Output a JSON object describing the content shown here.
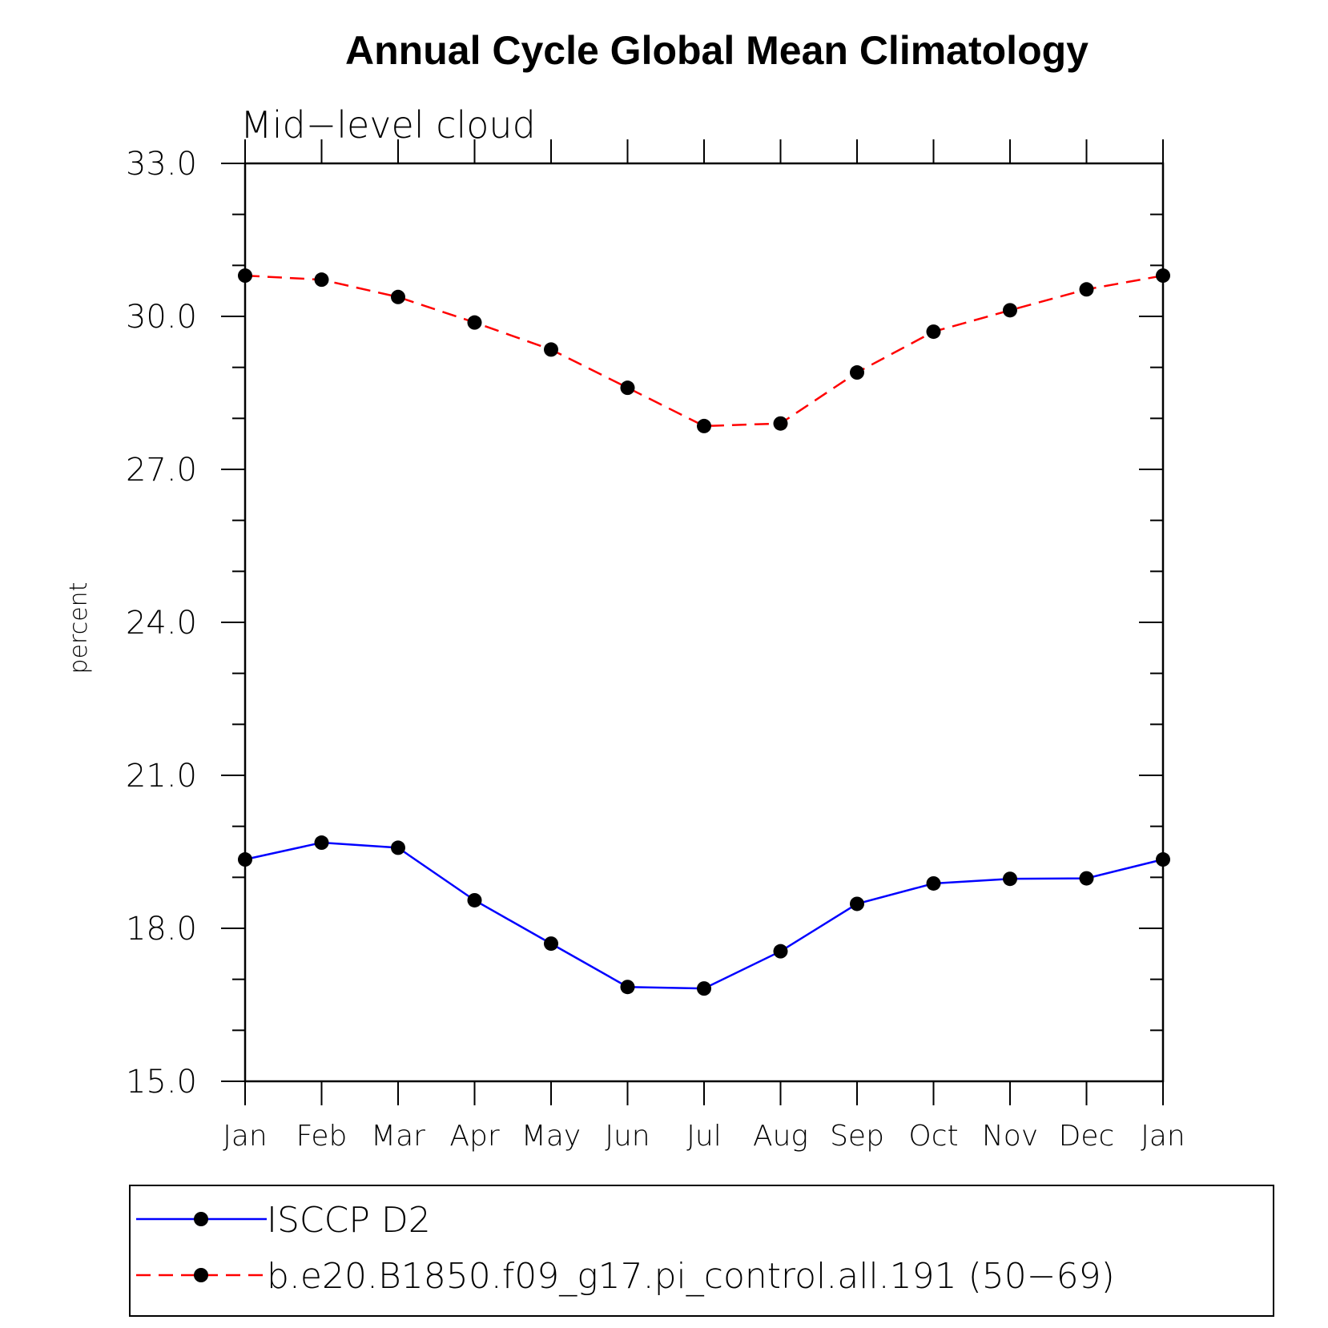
{
  "chart_data": {
    "type": "line",
    "title": "Annual Cycle Global Mean Climatology",
    "subtitle": "Mid−level cloud",
    "ylabel": "percent",
    "xlabel": "",
    "categories": [
      "Jan",
      "Feb",
      "Mar",
      "Apr",
      "May",
      "Jun",
      "Jul",
      "Aug",
      "Sep",
      "Oct",
      "Nov",
      "Dec",
      "Jan"
    ],
    "ylim": [
      15.0,
      33.0
    ],
    "yticks": [
      "15.0",
      "18.0",
      "21.0",
      "24.0",
      "27.0",
      "30.0",
      "33.0"
    ],
    "grid": false,
    "legend_position": "bottom",
    "series": [
      {
        "name": "ISCCP D2",
        "color": "#0000ff",
        "linestyle": "solid",
        "marker": "filled-circle",
        "values": [
          19.35,
          19.68,
          19.58,
          18.55,
          17.7,
          16.85,
          16.82,
          17.55,
          18.48,
          18.88,
          18.97,
          18.98,
          19.35
        ]
      },
      {
        "name": "b.e20.B1850.f09_g17.pi_control.all.191 (50−69)",
        "color": "#ff0000",
        "linestyle": "dashed",
        "marker": "filled-circle",
        "values": [
          30.8,
          30.72,
          30.38,
          29.88,
          29.35,
          28.6,
          27.85,
          27.9,
          28.9,
          29.7,
          30.12,
          30.53,
          30.8
        ]
      }
    ]
  }
}
